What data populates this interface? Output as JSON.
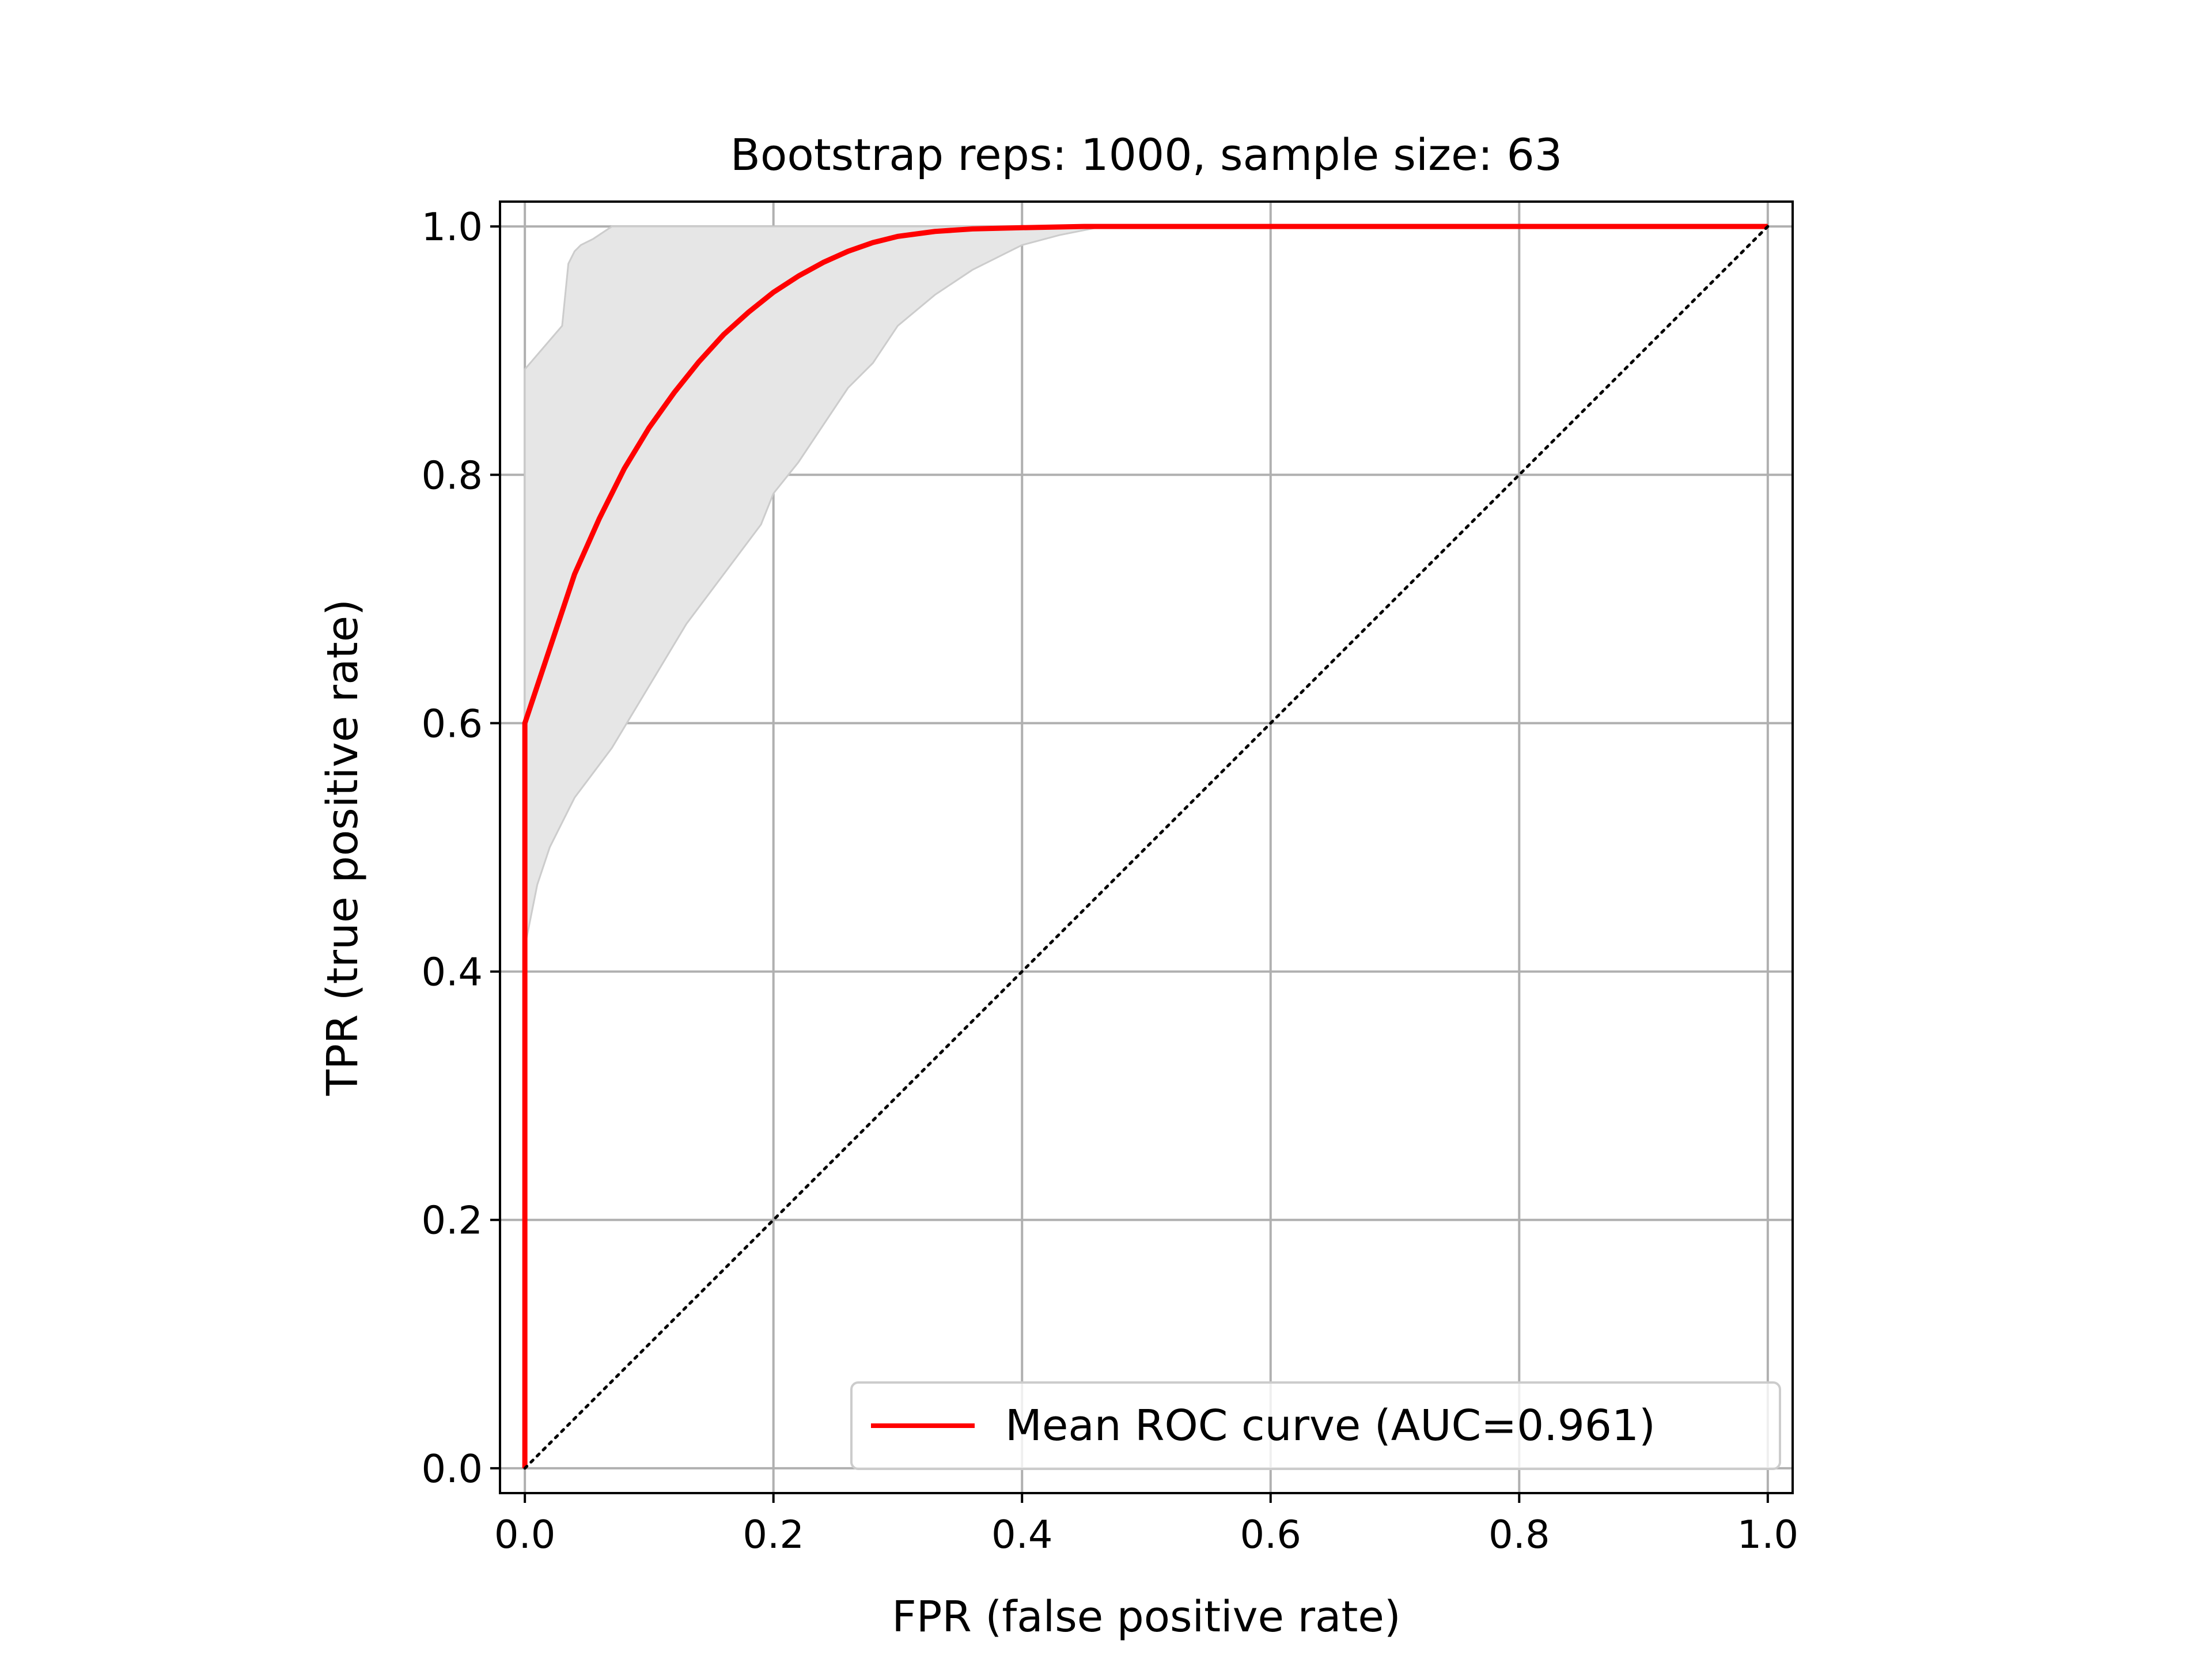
{
  "chart_data": {
    "type": "line",
    "title": "Bootstrap reps: 1000, sample size: 63",
    "xlabel": "FPR (false positive rate)",
    "ylabel": "TPR (true positive rate)",
    "xlim": [
      -0.02,
      1.02
    ],
    "ylim": [
      -0.02,
      1.02
    ],
    "xticks": [
      "0.0",
      "0.2",
      "0.4",
      "0.6",
      "0.8",
      "1.0"
    ],
    "yticks": [
      "0.0",
      "0.2",
      "0.4",
      "0.6",
      "0.8",
      "1.0"
    ],
    "grid": true,
    "legend": {
      "placement": "lower-right",
      "entries": [
        "Mean ROC curve (AUC=0.961)"
      ]
    },
    "colors": {
      "mean_curve": "#ff0000",
      "band_fill": "#e6e6e6",
      "band_edge": "#cccccc",
      "grid": "#b0b0b0"
    },
    "series": [
      {
        "name": "Mean ROC curve (AUC=0.961)",
        "style": "solid",
        "x": [
          0,
          0,
          0.02,
          0.04,
          0.06,
          0.08,
          0.1,
          0.12,
          0.14,
          0.16,
          0.18,
          0.2,
          0.22,
          0.24,
          0.26,
          0.28,
          0.3,
          0.33,
          0.36,
          0.4,
          0.45,
          0.5,
          1.0
        ],
        "y": [
          0,
          0.6,
          0.66,
          0.72,
          0.765,
          0.805,
          0.838,
          0.866,
          0.891,
          0.913,
          0.931,
          0.947,
          0.96,
          0.971,
          0.98,
          0.987,
          0.992,
          0.996,
          0.998,
          0.999,
          1.0,
          1.0,
          1.0
        ]
      },
      {
        "name": "",
        "style": "dotted",
        "x": [
          0,
          1
        ],
        "y": [
          0,
          1
        ]
      }
    ],
    "band": {
      "x_upper": [
        0,
        0,
        0.03,
        0.035,
        0.04,
        0.045,
        0.055,
        0.07,
        0.1,
        1.0
      ],
      "upper": [
        0,
        0.885,
        0.92,
        0.97,
        0.98,
        0.985,
        0.99,
        1.0,
        1.0,
        1.0
      ],
      "x_lower": [
        0,
        0,
        0.01,
        0.02,
        0.04,
        0.07,
        0.1,
        0.13,
        0.16,
        0.19,
        0.2,
        0.22,
        0.24,
        0.26,
        0.28,
        0.3,
        0.33,
        0.36,
        0.4,
        0.43,
        0.46,
        0.5,
        1.0
      ],
      "lower": [
        0,
        0.42,
        0.47,
        0.5,
        0.54,
        0.58,
        0.63,
        0.68,
        0.72,
        0.76,
        0.785,
        0.81,
        0.84,
        0.87,
        0.89,
        0.92,
        0.945,
        0.965,
        0.985,
        0.993,
        0.999,
        1.0,
        1.0
      ]
    }
  }
}
